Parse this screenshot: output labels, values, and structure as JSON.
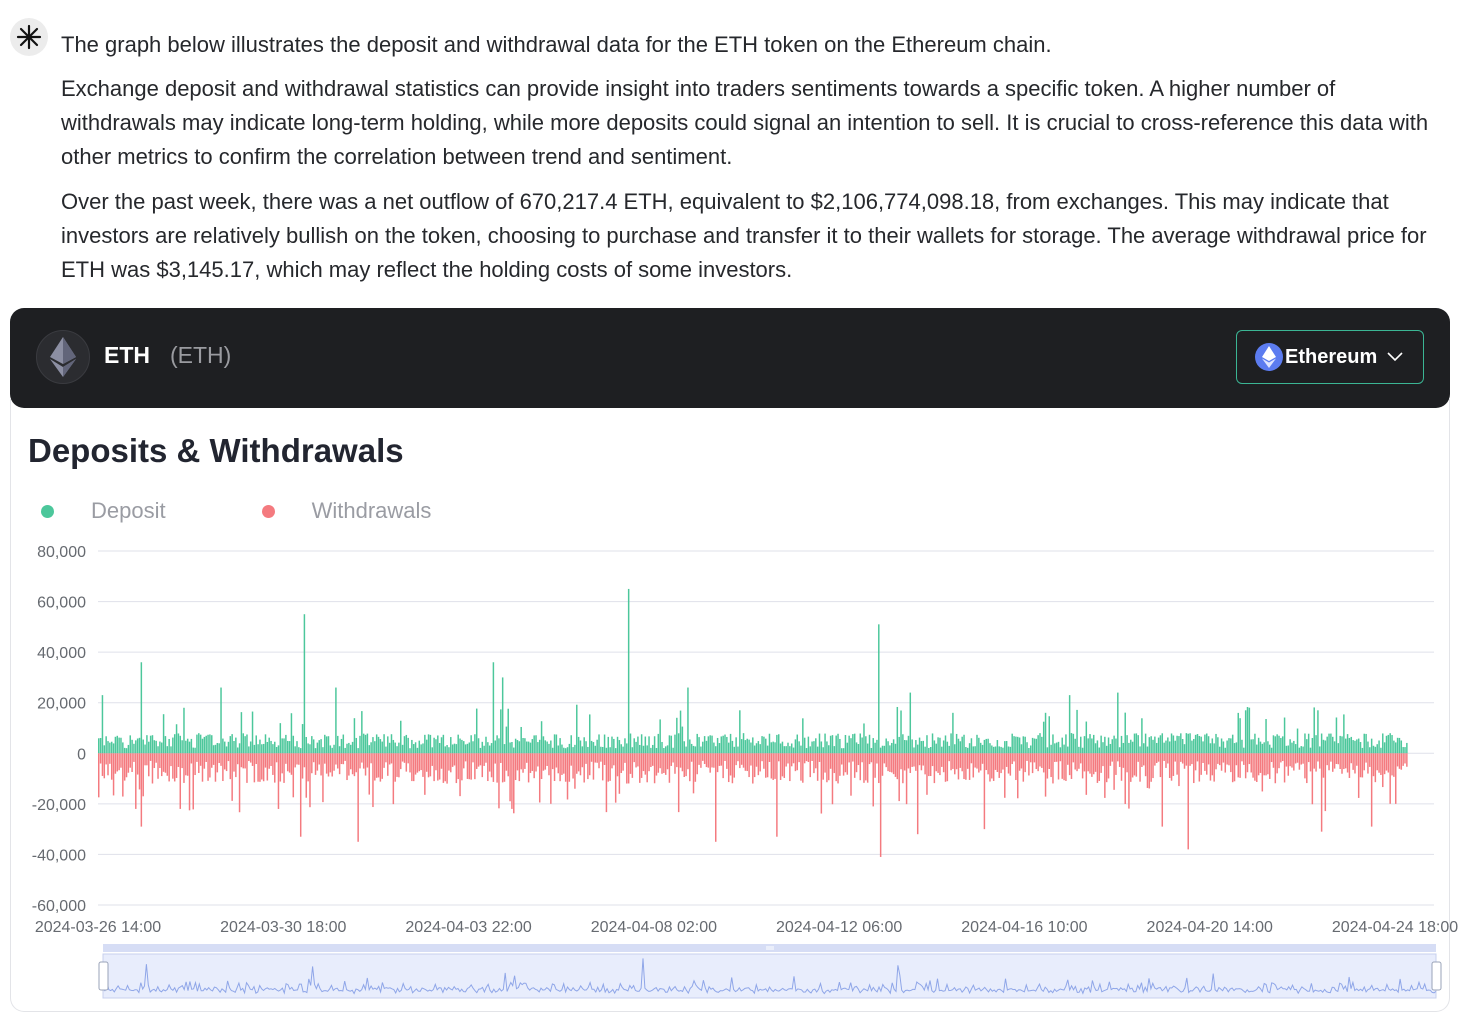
{
  "message": {
    "paragraphs": [
      "The graph below illustrates the deposit and withdrawal data for the ETH token on the Ethereum chain.",
      "Exchange deposit and withdrawal statistics can provide insight into traders sentiments towards a specific token. A higher number of withdrawals may indicate long-term holding, while more deposits could signal an intention to sell. It is crucial to cross-reference this data with other metrics to confirm the correlation between trend and sentiment.",
      "Over the past week, there was a net outflow of 670,217.4 ETH, equivalent to $2,106,774,098.18, from exchanges. This may indicate that investors are relatively bullish on the token, choosing to purchase and transfer it to their wallets for storage. The average withdrawal price for ETH was $3,145.17, which may reflect the holding costs of some investors."
    ]
  },
  "header": {
    "token_name": "ETH",
    "token_symbol": "(ETH)",
    "chain_label": "Ethereum",
    "logo_icon": "ethereum-diamond-icon",
    "chevron_icon": "chevron-down-icon"
  },
  "colors": {
    "deposit": "#4cc79b",
    "withdrawal": "#f47a7f",
    "header_bg": "#1e1f22",
    "accent_border": "#3bb594"
  },
  "chart_data": {
    "type": "bar",
    "title": "Deposits & Withdrawals",
    "legend_position": "top-left",
    "grid": true,
    "ylim": [
      -60000,
      80000
    ],
    "y_ticks": [
      "80,000",
      "60,000",
      "40,000",
      "20,000",
      "0",
      "-20,000",
      "-40,000",
      "-60,000"
    ],
    "x_ticks": [
      "2024-03-26 14:00",
      "2024-03-30 18:00",
      "2024-04-03 22:00",
      "2024-04-08 02:00",
      "2024-04-12 06:00",
      "2024-04-16 10:00",
      "2024-04-20 14:00",
      "2024-04-24 18:00"
    ],
    "x_range": [
      "2024-03-26 14:00",
      "2024-04-25 00:00"
    ],
    "interval": "hourly",
    "series": [
      {
        "name": "Deposit",
        "baseline_range": [
          2000,
          8000
        ],
        "spikes": [
          {
            "x": "2024-03-26 16:00",
            "value": 23000
          },
          {
            "x": "2024-03-27 13:00",
            "value": 36000
          },
          {
            "x": "2024-03-28 12:00",
            "value": 18000
          },
          {
            "x": "2024-03-29 08:00",
            "value": 26000
          },
          {
            "x": "2024-03-31 05:00",
            "value": 55000
          },
          {
            "x": "2024-03-31 22:00",
            "value": 26000
          },
          {
            "x": "2024-04-04 11:00",
            "value": 36000
          },
          {
            "x": "2024-04-04 16:00",
            "value": 30000
          },
          {
            "x": "2024-04-07 12:00",
            "value": 65000
          },
          {
            "x": "2024-04-08 20:00",
            "value": 26000
          },
          {
            "x": "2024-04-10 00:00",
            "value": 17000
          },
          {
            "x": "2024-04-13 03:00",
            "value": 51000
          },
          {
            "x": "2024-04-13 20:00",
            "value": 24000
          },
          {
            "x": "2024-04-17 10:00",
            "value": 23000
          },
          {
            "x": "2024-04-18 12:00",
            "value": 24000
          },
          {
            "x": "2024-04-21 09:00",
            "value": 17000
          },
          {
            "x": "2024-04-23 00:00",
            "value": 17000
          }
        ]
      },
      {
        "name": "Withdrawals",
        "baseline_range": [
          -12000,
          -3000
        ],
        "spikes": [
          {
            "x": "2024-03-27 10:00",
            "value": -22000
          },
          {
            "x": "2024-03-27 13:00",
            "value": -29000
          },
          {
            "x": "2024-03-28 10:00",
            "value": -22000
          },
          {
            "x": "2024-03-31 03:00",
            "value": -33000
          },
          {
            "x": "2024-04-01 10:00",
            "value": -35000
          },
          {
            "x": "2024-04-04 21:00",
            "value": -22000
          },
          {
            "x": "2024-04-09 11:00",
            "value": -35000
          },
          {
            "x": "2024-04-10 20:00",
            "value": -33000
          },
          {
            "x": "2024-04-13 04:00",
            "value": -41000
          },
          {
            "x": "2024-04-14 00:00",
            "value": -32000
          },
          {
            "x": "2024-04-15 12:00",
            "value": -30000
          },
          {
            "x": "2024-04-19 12:00",
            "value": -29000
          },
          {
            "x": "2024-04-20 02:00",
            "value": -38000
          },
          {
            "x": "2024-04-23 02:00",
            "value": -31000
          },
          {
            "x": "2024-04-24 05:00",
            "value": -29000
          }
        ]
      }
    ]
  }
}
